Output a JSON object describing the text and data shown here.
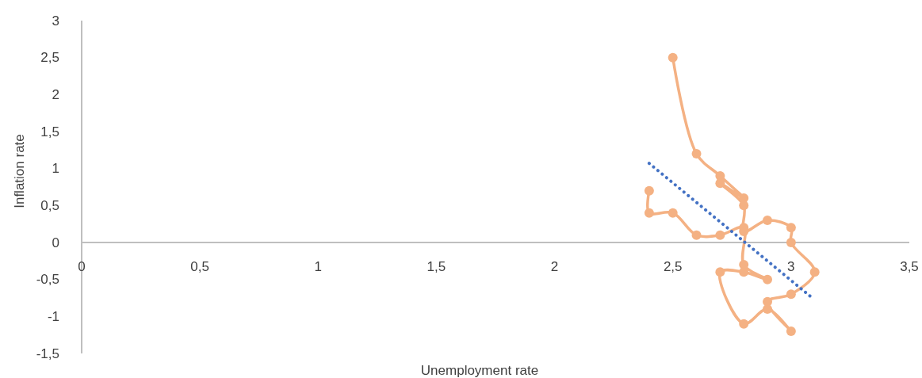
{
  "chart_data": {
    "type": "line",
    "xlabel": "Unemployment rate",
    "ylabel": "Inflation rate",
    "xlim": [
      0,
      3.5
    ],
    "ylim": [
      -1.5,
      3
    ],
    "xticks": [
      0,
      {
        "value": 0.5,
        "label": "0,5"
      },
      1,
      {
        "value": 1.5,
        "label": "1,5"
      },
      2,
      {
        "value": 2.5,
        "label": "2,5"
      },
      3,
      {
        "value": 3.5,
        "label": "3,5"
      }
    ],
    "yticks": [
      {
        "value": -1.5,
        "label": "-1,5"
      },
      -1,
      {
        "value": -0.5,
        "label": "-0,5"
      },
      0,
      {
        "value": 0.5,
        "label": "0,5"
      },
      1,
      {
        "value": 1.5,
        "label": "1,5"
      },
      2,
      {
        "value": 2.5,
        "label": "2,5"
      },
      3
    ],
    "grid": false,
    "series": [
      {
        "color": "#f4b183",
        "marker": "circle",
        "line_style": "solid",
        "x": [
          2.5,
          2.6,
          2.7,
          2.8,
          2.7,
          2.8,
          2.8,
          2.9,
          3.0,
          3.0,
          3.1,
          3.0,
          2.9,
          3.0,
          2.9,
          2.8,
          2.7,
          2.8,
          2.9,
          2.8,
          2.8,
          2.7,
          2.6,
          2.5,
          2.4,
          2.4
        ],
        "values": [
          2.5,
          1.2,
          0.9,
          0.6,
          0.8,
          0.5,
          0.15,
          0.3,
          0.2,
          0,
          -0.4,
          -0.7,
          -0.8,
          -1.2,
          -0.9,
          -1.1,
          -0.4,
          -0.4,
          -0.5,
          -0.3,
          0.2,
          0.1,
          0.1,
          0.4,
          0.4,
          0.7
        ]
      },
      {
        "type": "line",
        "color": "#4472c4",
        "marker": "none",
        "line_style": "dotted",
        "x": [
          2.4,
          3.09
        ],
        "values": [
          1.07,
          -0.75
        ]
      }
    ]
  }
}
